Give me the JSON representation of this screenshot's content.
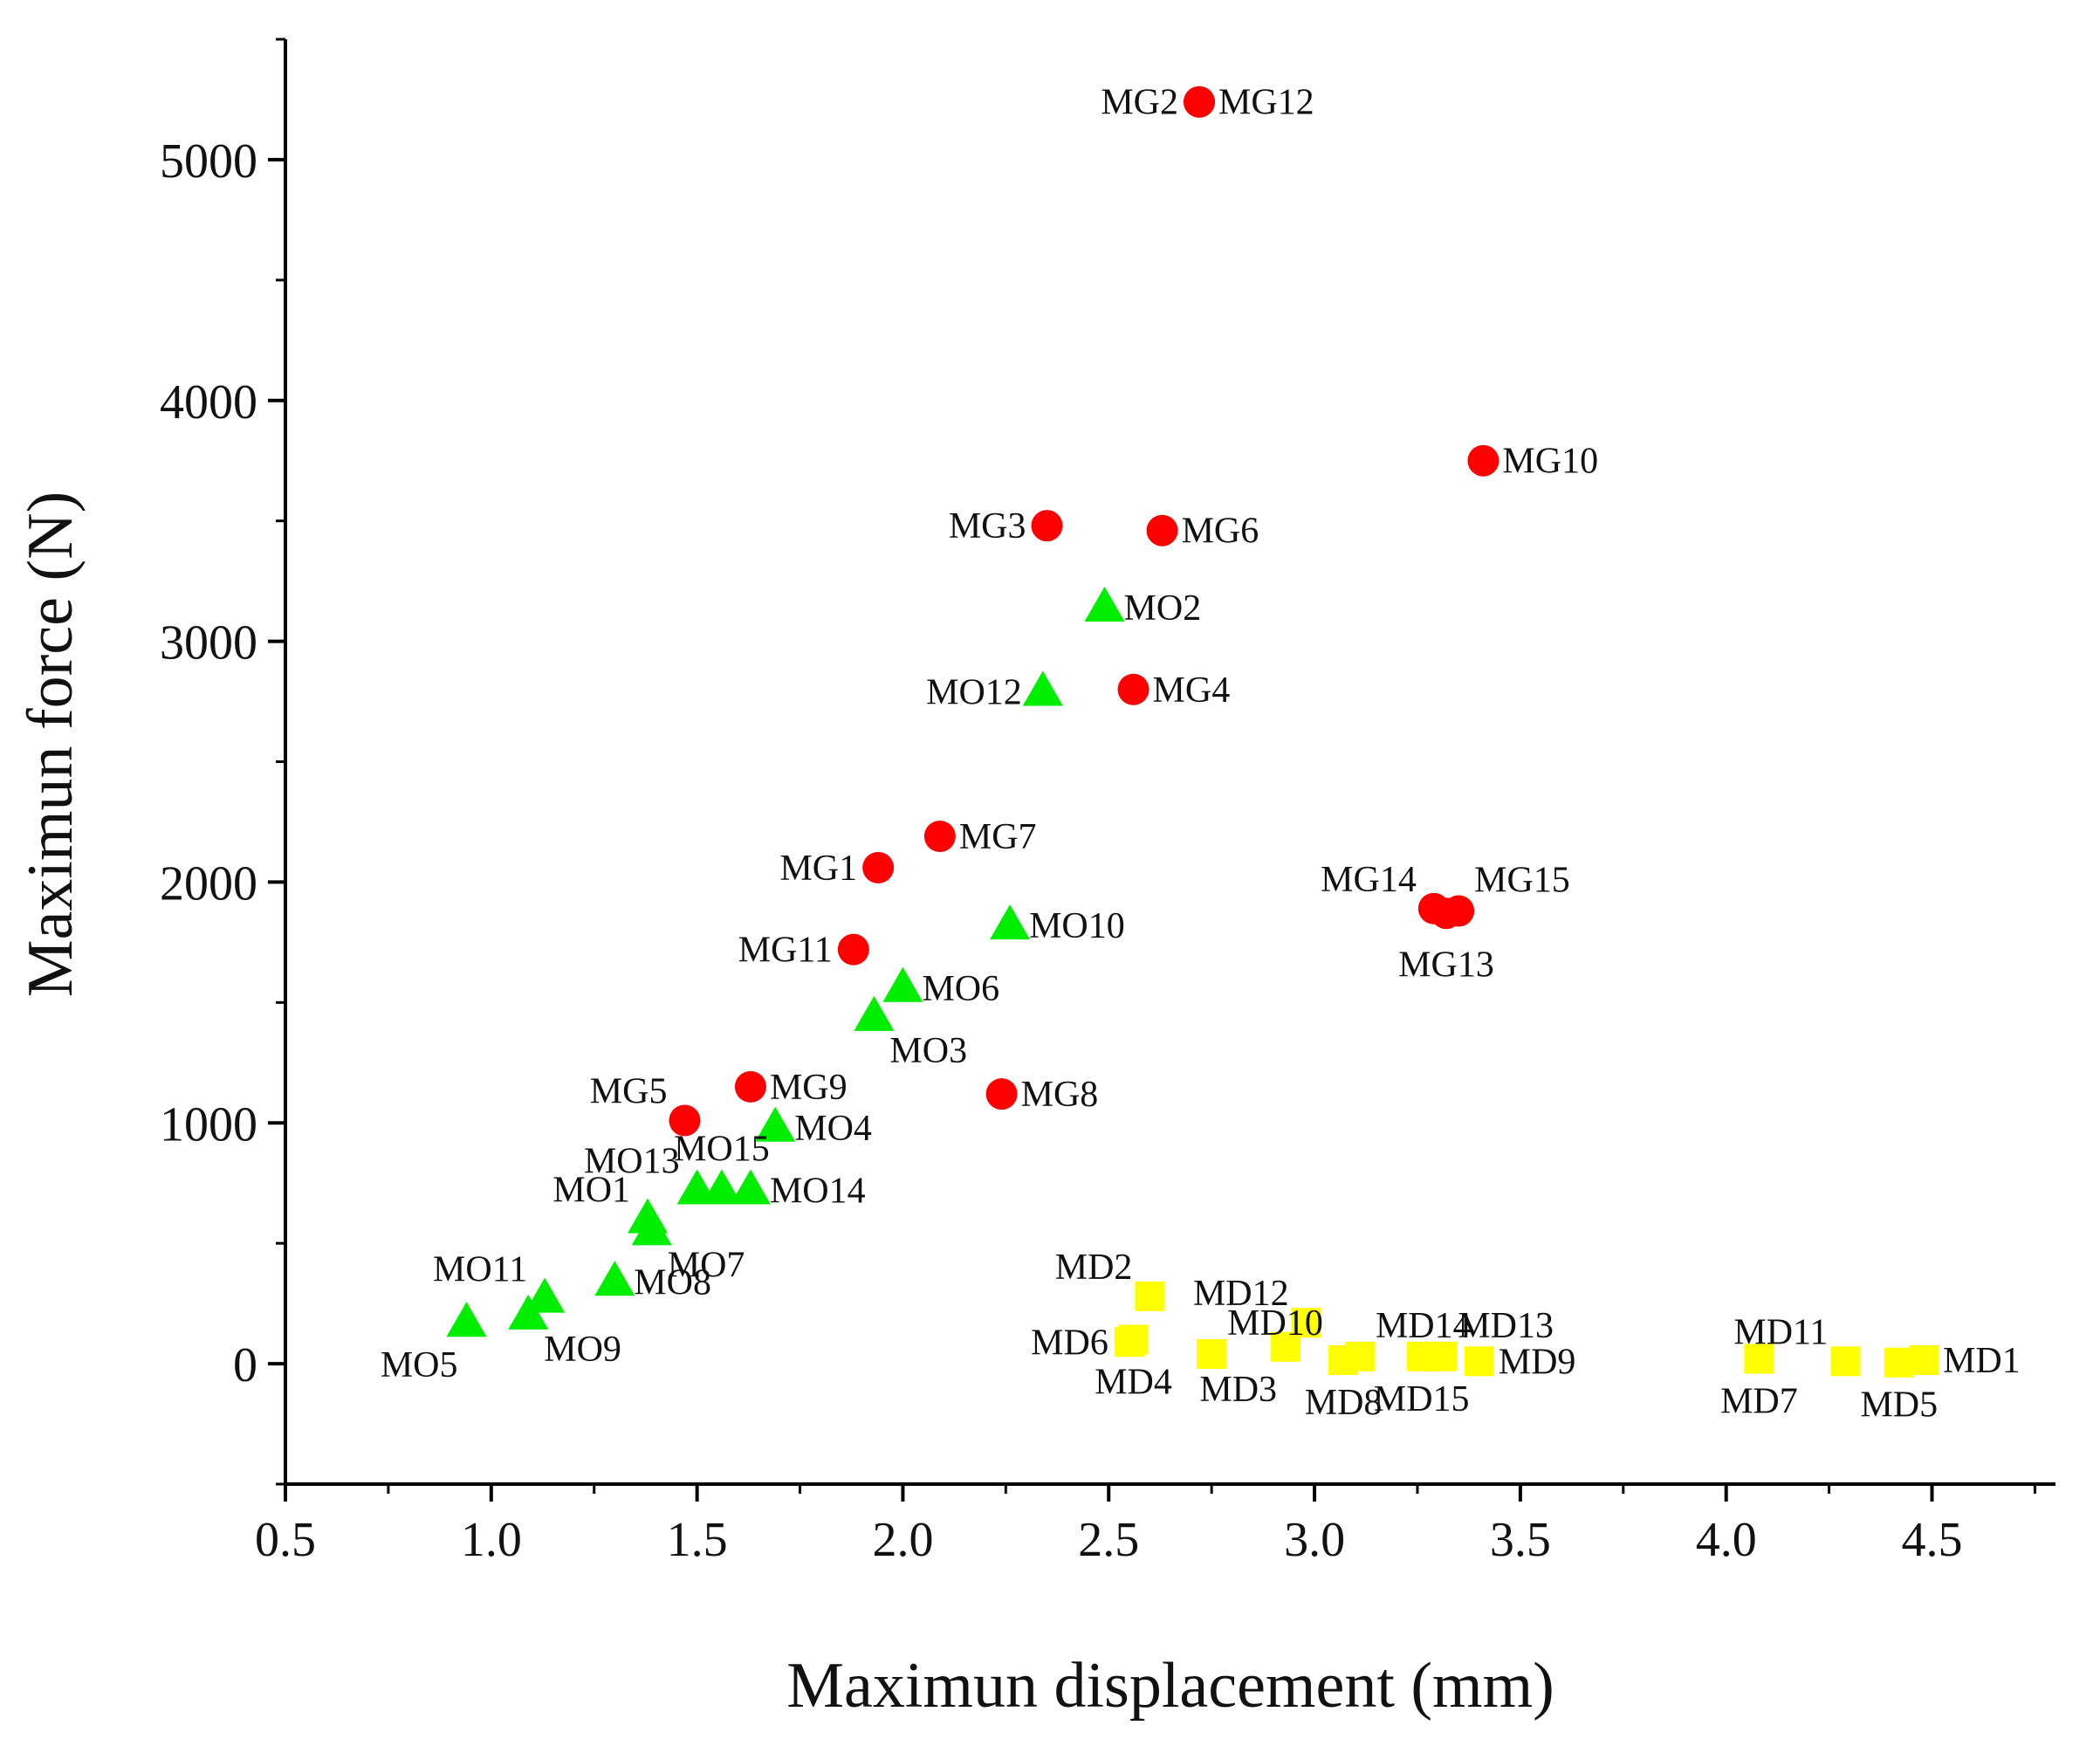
{
  "chart_data": {
    "type": "scatter",
    "title": "",
    "xlabel": "Maximun displacement (mm)",
    "ylabel": "Maximun force (N)",
    "xlim": [
      0.5,
      4.8
    ],
    "ylim": [
      -500,
      5500
    ],
    "xticks": [
      0.5,
      1.0,
      1.5,
      2.0,
      2.5,
      3.0,
      3.5,
      4.0,
      4.5
    ],
    "xtick_labels": [
      "0.5",
      "1.0",
      "1.5",
      "2.0",
      "2.5",
      "3.0",
      "3.5",
      "4.0",
      "4.5"
    ],
    "yticks": [
      0,
      1000,
      2000,
      3000,
      4000,
      5000
    ],
    "ytick_labels": [
      "0",
      "1000",
      "2000",
      "3000",
      "4000",
      "5000"
    ],
    "grid": false,
    "legend": "none",
    "series": [
      {
        "name": "MG",
        "marker": "circle",
        "color": "#ff0000",
        "points": [
          {
            "label": "MG1",
            "x": 1.94,
            "y": 2060,
            "anchor": "left"
          },
          {
            "label": "MG2",
            "x": 2.72,
            "y": 5240,
            "anchor": "left"
          },
          {
            "label": "MG3",
            "x": 2.35,
            "y": 3480,
            "anchor": "left"
          },
          {
            "label": "MG4",
            "x": 2.56,
            "y": 2800,
            "anchor": "right"
          },
          {
            "label": "MG5",
            "x": 1.47,
            "y": 1010,
            "anchor": "upleft"
          },
          {
            "label": "MG6",
            "x": 2.63,
            "y": 3460,
            "anchor": "right"
          },
          {
            "label": "MG7",
            "x": 2.09,
            "y": 2190,
            "anchor": "right"
          },
          {
            "label": "MG8",
            "x": 2.24,
            "y": 1120,
            "anchor": "right"
          },
          {
            "label": "MG9",
            "x": 1.63,
            "y": 1150,
            "anchor": "right"
          },
          {
            "label": "MG10",
            "x": 3.41,
            "y": 3750,
            "anchor": "right"
          },
          {
            "label": "MG11",
            "x": 1.88,
            "y": 1720,
            "anchor": "left"
          },
          {
            "label": "MG12",
            "x": 2.72,
            "y": 5240,
            "anchor": "right"
          },
          {
            "label": "MG13",
            "x": 3.32,
            "y": 1870,
            "anchor": "below"
          },
          {
            "label": "MG14",
            "x": 3.29,
            "y": 1890,
            "anchor": "upleft"
          },
          {
            "label": "MG15",
            "x": 3.35,
            "y": 1880,
            "anchor": "upright"
          }
        ]
      },
      {
        "name": "MO",
        "marker": "triangle",
        "color": "#00ee00",
        "points": [
          {
            "label": "MO1",
            "x": 1.38,
            "y": 600,
            "anchor": "upleft"
          },
          {
            "label": "MO2",
            "x": 2.49,
            "y": 3140,
            "anchor": "right"
          },
          {
            "label": "MO3",
            "x": 1.93,
            "y": 1440,
            "anchor": "downright"
          },
          {
            "label": "MO4",
            "x": 1.69,
            "y": 980,
            "anchor": "right"
          },
          {
            "label": "MO5",
            "x": 0.94,
            "y": 170,
            "anchor": "downleft"
          },
          {
            "label": "MO6",
            "x": 2.0,
            "y": 1560,
            "anchor": "right"
          },
          {
            "label": "MO7",
            "x": 1.39,
            "y": 550,
            "anchor": "downright"
          },
          {
            "label": "MO8",
            "x": 1.3,
            "y": 340,
            "anchor": "right"
          },
          {
            "label": "MO9",
            "x": 1.09,
            "y": 200,
            "anchor": "downright"
          },
          {
            "label": "MO10",
            "x": 2.26,
            "y": 1820,
            "anchor": "right"
          },
          {
            "label": "MO11",
            "x": 1.13,
            "y": 270,
            "anchor": "upleft"
          },
          {
            "label": "MO12",
            "x": 2.34,
            "y": 2790,
            "anchor": "left"
          },
          {
            "label": "MO13",
            "x": 1.5,
            "y": 720,
            "anchor": "upleft"
          },
          {
            "label": "MO14",
            "x": 1.63,
            "y": 720,
            "anchor": "right"
          },
          {
            "label": "MO15",
            "x": 1.56,
            "y": 720,
            "anchor": "up"
          }
        ]
      },
      {
        "name": "MD",
        "marker": "square",
        "color": "#ffff00",
        "points": [
          {
            "label": "MD1",
            "x": 4.48,
            "y": 15,
            "anchor": "right"
          },
          {
            "label": "MD2",
            "x": 2.6,
            "y": 280,
            "anchor": "upleft"
          },
          {
            "label": "MD3",
            "x": 2.93,
            "y": 70,
            "anchor": "downleft"
          },
          {
            "label": "MD4",
            "x": 2.56,
            "y": 100,
            "anchor": "down"
          },
          {
            "label": "MD5",
            "x": 4.42,
            "y": 5,
            "anchor": "down"
          },
          {
            "label": "MD6",
            "x": 2.55,
            "y": 90,
            "anchor": "left"
          },
          {
            "label": "MD7",
            "x": 4.08,
            "y": 20,
            "anchor": "down"
          },
          {
            "label": "MD8",
            "x": 3.07,
            "y": 15,
            "anchor": "down"
          },
          {
            "label": "MD9",
            "x": 3.4,
            "y": 10,
            "anchor": "right"
          },
          {
            "label": "MD10",
            "x": 2.75,
            "y": 40,
            "anchor": "upright"
          },
          {
            "label": "MD11",
            "x": 4.29,
            "y": 10,
            "anchor": "upleft"
          },
          {
            "label": "MD12",
            "x": 2.98,
            "y": 170,
            "anchor": "upleft"
          },
          {
            "label": "MD13",
            "x": 3.31,
            "y": 30,
            "anchor": "upright"
          },
          {
            "label": "MD14",
            "x": 3.11,
            "y": 30,
            "anchor": "upright"
          },
          {
            "label": "MD15",
            "x": 3.26,
            "y": 30,
            "anchor": "down"
          }
        ]
      }
    ]
  }
}
